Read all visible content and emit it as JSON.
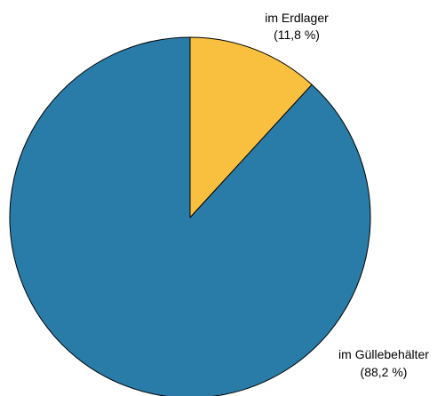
{
  "chart_data": {
    "type": "pie",
    "start_angle": "top",
    "direction": "clockwise",
    "slices": [
      {
        "label": "im Erdlager",
        "value": 11.8,
        "value_text": "(11,8 %)",
        "color": "#F9C03F"
      },
      {
        "label": "im Güllebehälter",
        "value": 88.2,
        "value_text": "(88,2 %)",
        "color": "#2A7CA8"
      }
    ],
    "stroke_color": "#000000"
  }
}
